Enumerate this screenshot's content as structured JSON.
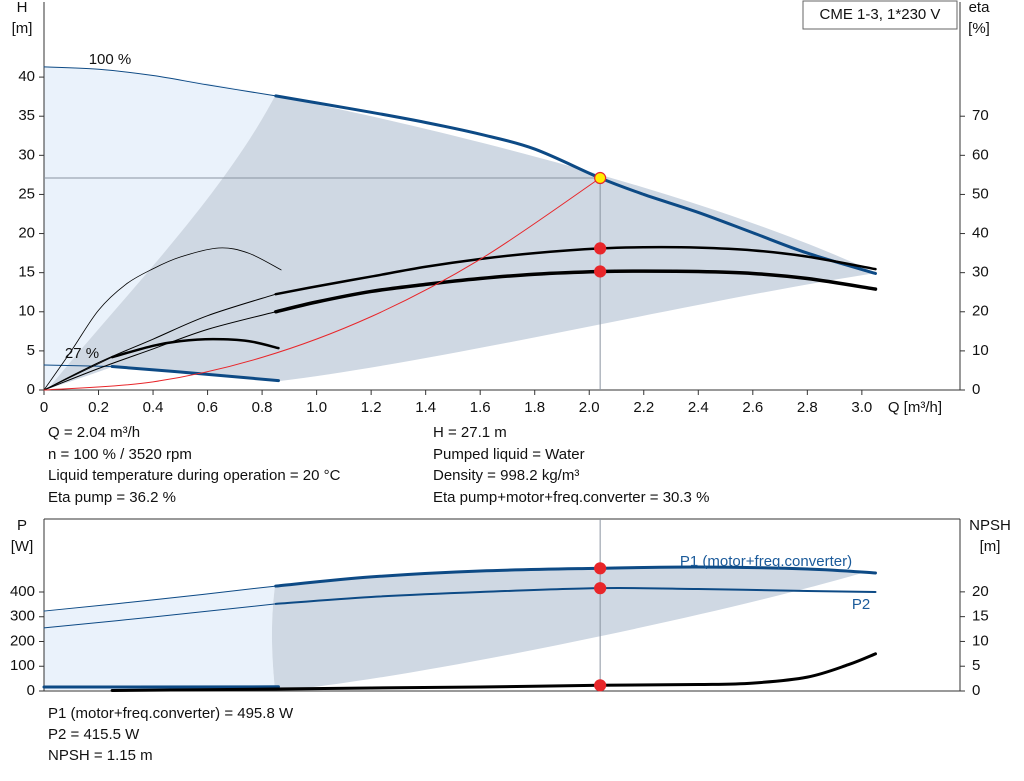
{
  "chart_data": [
    {
      "type": "line",
      "title": "CME 1-3, 1*230 V",
      "ylabel": "H",
      "yunit": "[m]",
      "y2label": "eta",
      "y2unit": "[%]",
      "xlabel": "Q [m³/h]",
      "annotations": [
        "100 %",
        "27 %"
      ],
      "xlim": [
        0,
        3.36
      ],
      "xticks": [
        0,
        0.2,
        0.4,
        0.6,
        0.8,
        {
          "value": 1.0,
          "label": "1.0"
        },
        1.2,
        1.4,
        1.6,
        1.8,
        {
          "value": 2.0,
          "label": "2.0"
        },
        2.2,
        2.4,
        2.6,
        2.8,
        {
          "value": 3.0,
          "label": "3.0"
        }
      ],
      "ylim": [
        0,
        49.6
      ],
      "yticks": [
        0,
        5,
        10,
        15,
        20,
        25,
        30,
        35,
        40
      ],
      "y2lim": [
        0,
        99.2
      ],
      "y2ticks": [
        0,
        10,
        20,
        30,
        40,
        50,
        60,
        70
      ],
      "series": [
        {
          "x": [
            0,
            0.2,
            0.4,
            0.6,
            0.85
          ],
          "values": [
            41.3,
            41.0,
            40.2,
            39.0,
            37.6
          ],
          "color": "#0d4a85",
          "width": 1
        },
        {
          "x": [
            0.85,
            1.0,
            1.2,
            1.4,
            1.6,
            1.8,
            2.04,
            2.2,
            2.4,
            2.6,
            2.8,
            3.05
          ],
          "values": [
            37.6,
            36.7,
            35.5,
            34.2,
            32.7,
            30.8,
            27.1,
            25.0,
            22.7,
            20.1,
            17.5,
            14.9
          ],
          "color": "#0d4a85",
          "width": 3
        },
        {
          "x": [
            0,
            0.25
          ],
          "values": [
            3.2,
            3.0
          ],
          "color": "#0d4a85",
          "width": 1
        },
        {
          "x": [
            0.25,
            0.5,
            0.86
          ],
          "values": [
            3.0,
            2.3,
            1.2
          ],
          "color": "#0d4a85",
          "width": 3
        },
        {
          "x": [
            0,
            0.2,
            0.4,
            0.6,
            0.85
          ],
          "values": [
            0,
            7,
            13,
            19,
            24.5
          ],
          "color": "#000000",
          "width": 1,
          "axis": "y2"
        },
        {
          "x": [
            0.85,
            1.0,
            1.2,
            1.4,
            1.6,
            1.8,
            2.04,
            2.2,
            2.4,
            2.6,
            2.8,
            3.05
          ],
          "values": [
            24.5,
            26.5,
            29,
            31.5,
            33.5,
            35,
            36.2,
            36.5,
            36.4,
            35.7,
            34.1,
            30.9
          ],
          "color": "#000000",
          "width": 2.5,
          "axis": "y2"
        },
        {
          "x": [
            0,
            0.2,
            0.4,
            0.6,
            0.85
          ],
          "values": [
            0,
            5.5,
            10.5,
            15.5,
            20
          ],
          "color": "#000000",
          "width": 1,
          "axis": "y2"
        },
        {
          "x": [
            0.85,
            1.0,
            1.2,
            1.4,
            1.6,
            1.8,
            2.04,
            2.2,
            2.4,
            2.6,
            2.8,
            3.05
          ],
          "values": [
            20,
            22.5,
            25.2,
            27,
            28.5,
            29.6,
            30.3,
            30.4,
            30.3,
            29.8,
            28.5,
            25.8
          ],
          "color": "#000000",
          "width": 3.5,
          "axis": "y2"
        },
        {
          "x": [
            0,
            0.1,
            0.2,
            0.3,
            0.4,
            0.5,
            0.64,
            0.75,
            0.87
          ],
          "values": [
            0,
            10,
            20.4,
            27,
            31,
            34,
            36.3,
            35,
            30.7
          ],
          "color": "#000000",
          "width": 0.8,
          "axis": "y2"
        },
        {
          "x": [
            0,
            0.25
          ],
          "values": [
            0,
            8.4
          ],
          "color": "#000000",
          "width": 0.8,
          "axis": "y2"
        },
        {
          "x": [
            0.25,
            0.4,
            0.5,
            0.62,
            0.75,
            0.86
          ],
          "values": [
            8.4,
            11.3,
            12.5,
            13,
            12.5,
            10.7
          ],
          "color": "#000000",
          "width": 2.5,
          "axis": "y2"
        },
        {
          "x": [
            0,
            0.4,
            0.8,
            1.2,
            1.6,
            2.04
          ],
          "values": [
            0,
            1.04,
            4.17,
            9.38,
            16.7,
            27.1
          ],
          "color": "#e8262a",
          "width": 1
        }
      ],
      "markers": [
        {
          "x": 2.04,
          "y": 27.1,
          "color": "#ffee00"
        },
        {
          "x": 2.04,
          "y": 36.2,
          "axis": "y2",
          "color": "#e8262a"
        },
        {
          "x": 2.04,
          "y": 30.3,
          "axis": "y2",
          "color": "#e8262a"
        }
      ],
      "readout": [
        "Q = 2.04 m³/h",
        "n = 100 % / 3520 rpm",
        "Liquid temperature during operation = 20 °C",
        "Eta pump = 36.2 %",
        "H = 27.1 m",
        "Pumped liquid = Water",
        "Density = 998.2 kg/m³",
        "Eta pump+motor+freq.converter = 30.3 %"
      ]
    },
    {
      "type": "line",
      "ylabel": "P",
      "yunit": "[W]",
      "y2label": "NPSH",
      "y2unit": "[m]",
      "xlim": [
        0,
        3.36
      ],
      "ylim": [
        0,
        695
      ],
      "yticks": [
        0,
        100,
        200,
        300,
        400
      ],
      "y2lim": [
        0,
        34.7
      ],
      "y2ticks": [
        0,
        5,
        10,
        15,
        20
      ],
      "series": [
        {
          "x": [
            0,
            0.4,
            0.85
          ],
          "values": [
            323,
            368,
            424
          ],
          "color": "#0d4a85",
          "width": 1
        },
        {
          "name": "P1 (motor+freq.converter)",
          "x": [
            0.85,
            1.2,
            1.6,
            2.04,
            2.4,
            2.8,
            3.05
          ],
          "values": [
            424,
            461,
            485,
            495.8,
            501,
            493,
            477
          ],
          "color": "#0d4a85",
          "width": 3
        },
        {
          "x": [
            0,
            0.4,
            0.85
          ],
          "values": [
            255,
            299,
            352
          ],
          "color": "#0d4a85",
          "width": 1
        },
        {
          "name": "P2",
          "x": [
            0.85,
            1.2,
            1.6,
            2.04,
            2.4,
            2.8,
            3.05
          ],
          "values": [
            352,
            380,
            400,
            415.5,
            412,
            404,
            400
          ],
          "color": "#0d4a85",
          "width": 2
        },
        {
          "x": [
            0,
            0.86
          ],
          "values": [
            16,
            17
          ],
          "color": "#0d4a85",
          "width": 3
        },
        {
          "x": [
            0.25,
            0.85,
            1.2,
            1.6,
            2.04,
            2.4,
            2.6,
            2.8,
            2.95,
            3.05
          ],
          "values": [
            0.1,
            0.4,
            0.6,
            0.8,
            1.15,
            1.3,
            1.6,
            2.8,
            5.3,
            7.5
          ],
          "color": "#000000",
          "width": 3,
          "axis": "y2"
        }
      ],
      "markers": [
        {
          "x": 2.04,
          "y": 495.8,
          "color": "#e8262a"
        },
        {
          "x": 2.04,
          "y": 415.5,
          "color": "#e8262a"
        },
        {
          "x": 2.04,
          "y": 1.15,
          "axis": "y2",
          "color": "#e8262a"
        }
      ],
      "readout": [
        "P1 (motor+freq.converter) = 495.8 W",
        "P2 = 415.5 W",
        "NPSH = 1.15 m"
      ]
    }
  ]
}
